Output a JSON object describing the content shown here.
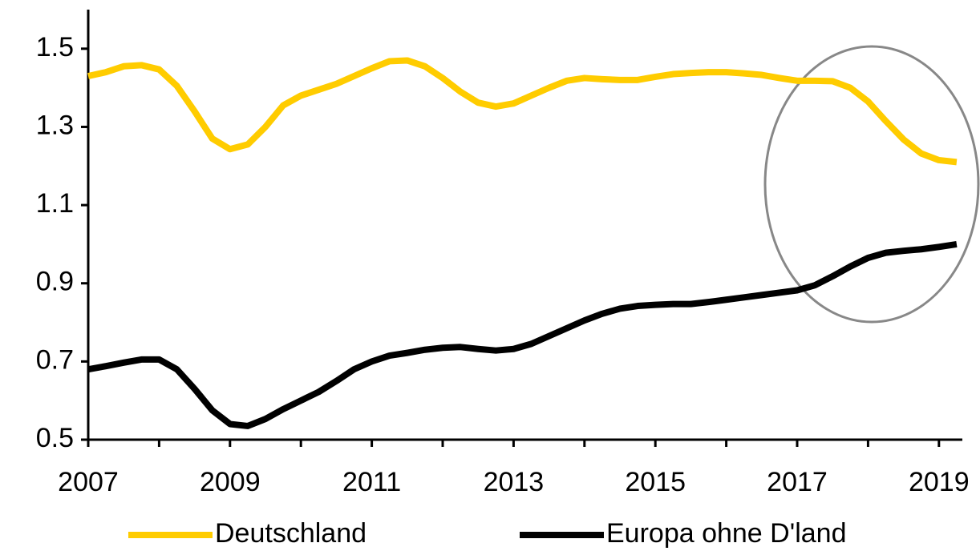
{
  "chart_data": {
    "type": "line",
    "x": [
      2007,
      2007.25,
      2007.5,
      2007.75,
      2008,
      2008.25,
      2008.5,
      2008.75,
      2009,
      2009.25,
      2009.5,
      2009.75,
      2010,
      2010.25,
      2010.5,
      2010.75,
      2011,
      2011.25,
      2011.5,
      2011.75,
      2012,
      2012.25,
      2012.5,
      2012.75,
      2013,
      2013.25,
      2013.5,
      2013.75,
      2014,
      2014.25,
      2014.5,
      2014.75,
      2015,
      2015.25,
      2015.5,
      2015.75,
      2016,
      2016.25,
      2016.5,
      2016.75,
      2017,
      2017.25,
      2017.5,
      2017.75,
      2018,
      2018.25,
      2018.5,
      2018.75,
      2019,
      2019.25
    ],
    "series": [
      {
        "name": "Deutschland",
        "color": "#ffcc00",
        "values": [
          1.43,
          1.44,
          1.455,
          1.458,
          1.447,
          1.405,
          1.34,
          1.27,
          1.243,
          1.255,
          1.3,
          1.355,
          1.38,
          1.395,
          1.41,
          1.43,
          1.45,
          1.468,
          1.47,
          1.455,
          1.425,
          1.39,
          1.362,
          1.352,
          1.36,
          1.38,
          1.4,
          1.418,
          1.425,
          1.422,
          1.42,
          1.42,
          1.428,
          1.435,
          1.438,
          1.44,
          1.44,
          1.437,
          1.433,
          1.425,
          1.418,
          1.418,
          1.417,
          1.4,
          1.365,
          1.315,
          1.268,
          1.232,
          1.215,
          1.21
        ]
      },
      {
        "name": "Europa ohne D'land",
        "color": "#000000",
        "values": [
          0.68,
          0.688,
          0.697,
          0.705,
          0.705,
          0.68,
          0.63,
          0.575,
          0.54,
          0.535,
          0.553,
          0.578,
          0.6,
          0.622,
          0.65,
          0.68,
          0.7,
          0.715,
          0.722,
          0.73,
          0.735,
          0.737,
          0.732,
          0.728,
          0.732,
          0.745,
          0.765,
          0.785,
          0.805,
          0.822,
          0.835,
          0.842,
          0.845,
          0.847,
          0.847,
          0.852,
          0.858,
          0.864,
          0.87,
          0.876,
          0.882,
          0.895,
          0.918,
          0.943,
          0.965,
          0.978,
          0.983,
          0.987,
          0.993,
          1.0
        ]
      }
    ],
    "xlim": [
      2007,
      2019.33
    ],
    "xticks": [
      2007,
      2009,
      2011,
      2013,
      2015,
      2017,
      2019
    ],
    "xminorticks": [
      2008,
      2010,
      2012,
      2014,
      2016,
      2018
    ],
    "ylim": [
      0.5,
      1.6
    ],
    "yticks": [
      0.5,
      0.7,
      0.9,
      1.1,
      1.3,
      1.5
    ],
    "grid": false,
    "legend": "bottom"
  }
}
